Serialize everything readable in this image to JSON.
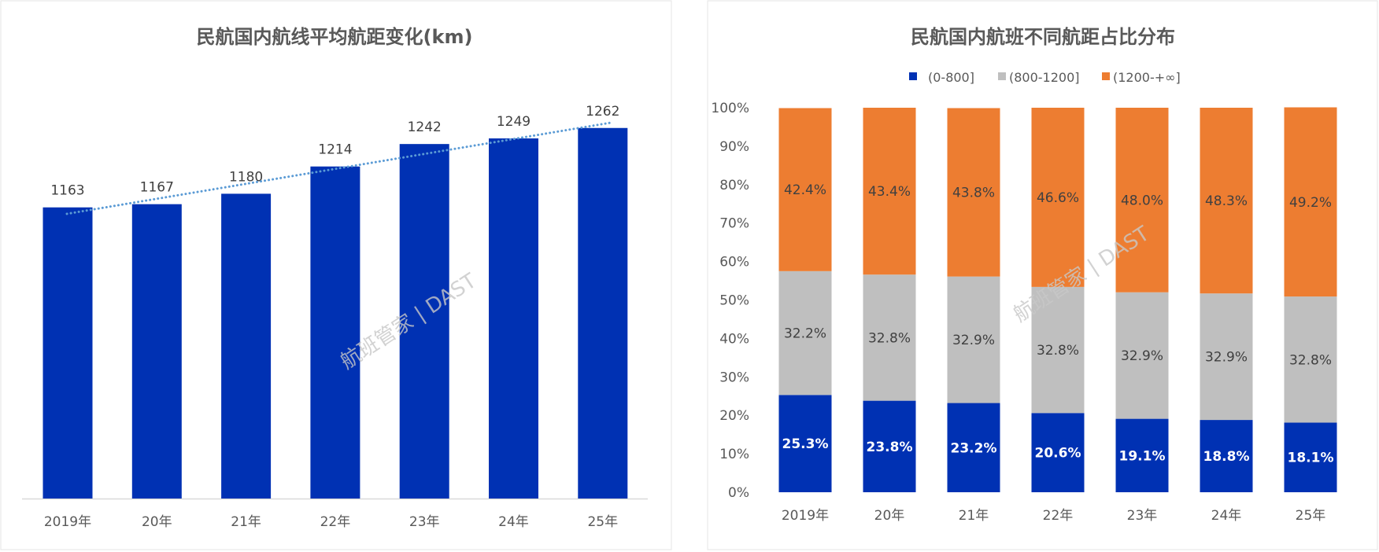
{
  "watermark": "航班管家 | DAST",
  "colors": {
    "blue": "#0031b3",
    "gray": "#bfbfbf",
    "orange": "#ed7d31",
    "trend": "#5b9bd5"
  },
  "chart_data": [
    {
      "type": "bar",
      "title": "民航国内航线平均航距变化(km)",
      "categories": [
        "2019年",
        "20年",
        "21年",
        "22年",
        "23年",
        "24年",
        "25年"
      ],
      "values": [
        1163,
        1167,
        1180,
        1214,
        1242,
        1249,
        1262
      ],
      "ylim": [
        800,
        1300
      ],
      "xlabel": "",
      "ylabel": "",
      "trendline": "linear",
      "grid": false
    },
    {
      "type": "bar",
      "stacked": true,
      "title": "民航国内航班不同航距占比分布",
      "categories": [
        "2019年",
        "20年",
        "21年",
        "22年",
        "23年",
        "24年",
        "25年"
      ],
      "series": [
        {
          "name": "(0-800]",
          "values": [
            25.3,
            23.8,
            23.2,
            20.6,
            19.1,
            18.8,
            18.1
          ]
        },
        {
          "name": "(800-1200]",
          "values": [
            32.2,
            32.8,
            32.9,
            32.8,
            32.9,
            32.9,
            32.8
          ]
        },
        {
          "name": "(1200-+∞]",
          "values": [
            42.4,
            43.4,
            43.8,
            46.6,
            48.0,
            48.3,
            49.2
          ]
        }
      ],
      "yticks": [
        "0%",
        "10%",
        "20%",
        "30%",
        "40%",
        "50%",
        "60%",
        "70%",
        "80%",
        "90%",
        "100%"
      ],
      "ylim": [
        0,
        100
      ],
      "legend": "top",
      "grid": false
    }
  ]
}
